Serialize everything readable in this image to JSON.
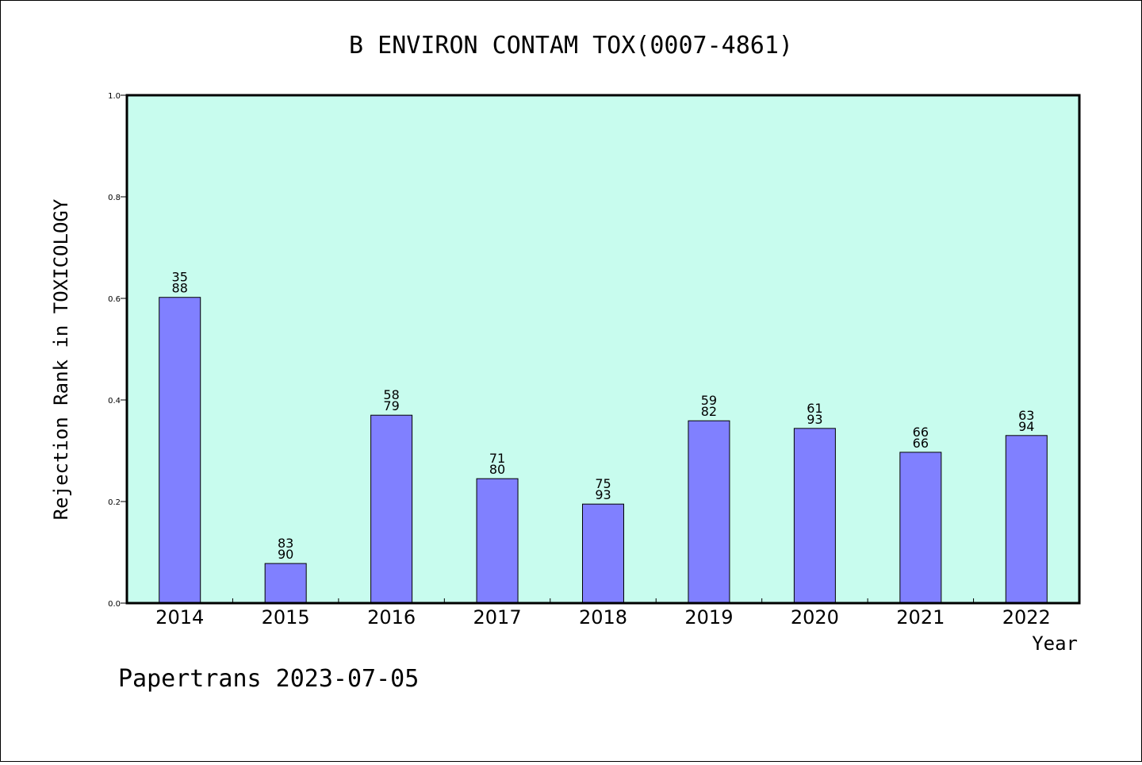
{
  "chart_data": {
    "type": "bar",
    "title": "B ENVIRON CONTAM TOX(0007-4861)",
    "xlabel": "Year",
    "ylabel": "Rejection Rank in TOXICOLOGY",
    "ylim": [
      0,
      1.0
    ],
    "yticks": [
      "0.0",
      "0.2",
      "0.4",
      "0.6",
      "0.8",
      "1.0"
    ],
    "categories": [
      "2014",
      "2015",
      "2016",
      "2017",
      "2018",
      "2019",
      "2020",
      "2021",
      "2022"
    ],
    "values": [
      0.602,
      0.078,
      0.37,
      0.245,
      0.195,
      0.359,
      0.344,
      0.297,
      0.33
    ],
    "labels_top": [
      "35",
      "83",
      "58",
      "71",
      "75",
      "59",
      "61",
      "66",
      "63"
    ],
    "labels_bottom": [
      "88",
      "90",
      "79",
      "80",
      "93",
      "82",
      "93",
      "66",
      "94"
    ],
    "grid": false,
    "colors": {
      "plot_bg": "#c8fcee",
      "bar": "#8080ff",
      "border": "#000000"
    }
  },
  "footer": {
    "text": "Papertrans 2023-07-05"
  }
}
